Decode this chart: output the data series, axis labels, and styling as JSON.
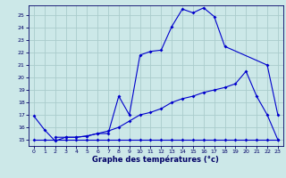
{
  "xlabel": "Graphe des températures (°c)",
  "bg_color": "#cce8e8",
  "grid_color": "#aacccc",
  "line_color": "#0000cc",
  "spine_color": "#000066",
  "ylim": [
    14.5,
    25.8
  ],
  "xlim": [
    -0.5,
    23.5
  ],
  "yticks": [
    15,
    16,
    17,
    18,
    19,
    20,
    21,
    22,
    23,
    24,
    25
  ],
  "xticks": [
    0,
    1,
    2,
    3,
    4,
    5,
    6,
    7,
    8,
    9,
    10,
    11,
    12,
    13,
    14,
    15,
    16,
    17,
    18,
    19,
    20,
    21,
    22,
    23
  ],
  "series1_x": [
    0,
    1,
    2,
    3,
    4,
    5,
    6,
    7,
    8,
    9,
    10,
    11,
    12,
    13,
    14,
    15,
    16,
    17,
    18,
    22,
    23
  ],
  "series1_y": [
    16.9,
    15.8,
    14.9,
    15.2,
    15.2,
    15.3,
    15.5,
    15.5,
    18.5,
    17.0,
    21.8,
    22.1,
    22.2,
    24.1,
    25.5,
    25.2,
    25.6,
    24.9,
    22.5,
    21.0,
    17.0
  ],
  "series2_x": [
    2,
    3,
    4,
    5,
    6,
    7,
    8,
    9,
    10,
    11,
    12,
    13,
    14,
    15,
    16,
    17,
    18,
    19,
    20,
    21,
    22,
    23
  ],
  "series2_y": [
    15.2,
    15.2,
    15.2,
    15.3,
    15.5,
    15.7,
    16.0,
    16.5,
    17.0,
    17.2,
    17.5,
    18.0,
    18.3,
    18.5,
    18.8,
    19.0,
    19.2,
    19.5,
    20.5,
    18.5,
    17.0,
    15.0
  ],
  "series3_x": [
    0,
    1,
    2,
    3,
    4,
    5,
    6,
    7,
    8,
    9,
    10,
    11,
    12,
    13,
    14,
    15,
    16,
    17,
    18,
    19,
    20,
    21,
    22,
    23
  ],
  "series3_y": [
    15.0,
    15.0,
    15.0,
    15.0,
    15.0,
    15.0,
    15.0,
    15.0,
    15.0,
    15.0,
    15.0,
    15.0,
    15.0,
    15.0,
    15.0,
    15.0,
    15.0,
    15.0,
    15.0,
    15.0,
    15.0,
    15.0,
    15.0,
    15.0
  ]
}
